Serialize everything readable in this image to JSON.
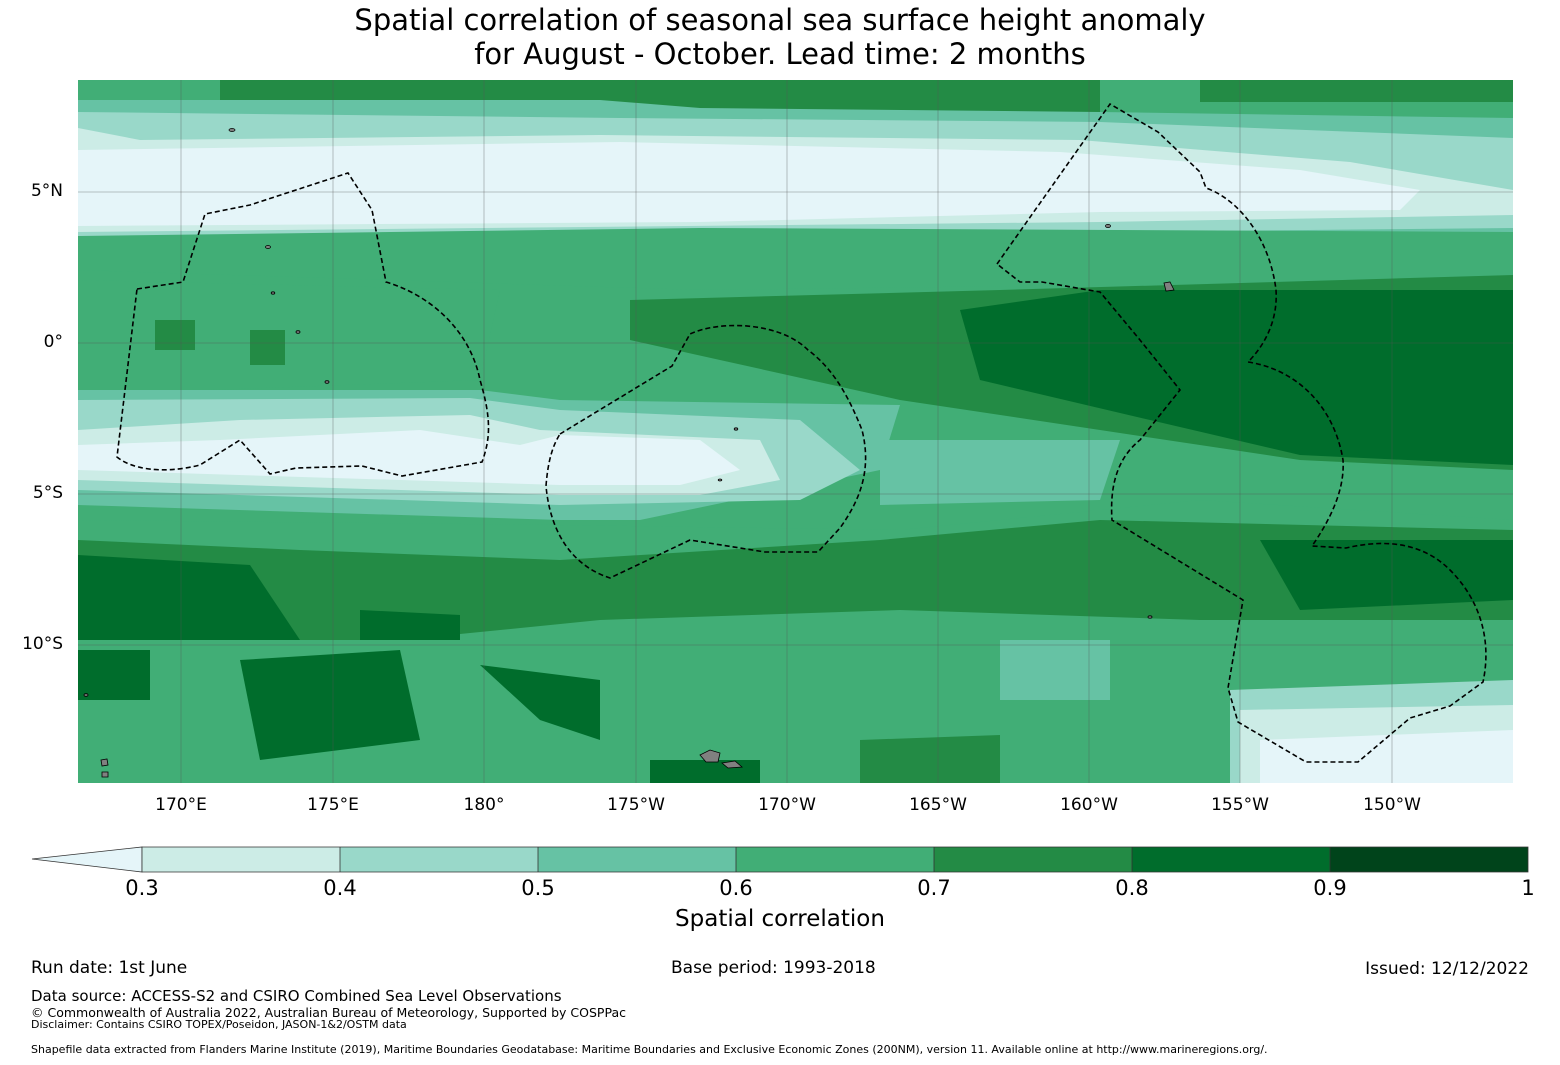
{
  "title": {
    "line1": "Spatial correlation of seasonal sea surface height anomaly",
    "line2": "for August - October. Lead time: 2 months"
  },
  "map": {
    "lat_labels": [
      "5°N",
      "0°",
      "5°S",
      "10°S"
    ],
    "lon_labels": [
      "170°E",
      "175°E",
      "180°",
      "175°W",
      "170°W",
      "165°W",
      "160°W",
      "155°W",
      "150°W"
    ],
    "boundary_style": "dashed black lines (maritime boundaries / EEZ)",
    "land_color": "#808080"
  },
  "colorbar": {
    "ticks": [
      "0.3",
      "0.4",
      "0.5",
      "0.6",
      "0.7",
      "0.8",
      "0.9",
      "1"
    ],
    "colors": [
      "#e5f5f9",
      "#ccece6",
      "#99d8c9",
      "#66c2a4",
      "#41ae76",
      "#238b45",
      "#006d2c",
      "#00441b"
    ],
    "label": "Spatial correlation",
    "extend": "min"
  },
  "footer": {
    "run_date": "Run date: 1st June",
    "base_period": "Base period: 1993-2018",
    "issued": "Issued: 12/12/2022",
    "data_source": "Data source: ACCESS-S2 and CSIRO Combined Sea Level Observations",
    "copyright": "© Commonwealth of Australia 2022, Australian Bureau of Meteorology, Supported by COSPPac",
    "disclaimer": "Disclaimer: Contains CSIRO TOPEX/Poseidon, JASON-1&2/OSTM data",
    "shapefile": "Shapefile data extracted from Flanders Marine Institute (2019), Maritime Boundaries Geodatabase: Maritime Boundaries and Exclusive Economic Zones (200NM), version 11. Available online at http://www.marineregions.org/."
  }
}
